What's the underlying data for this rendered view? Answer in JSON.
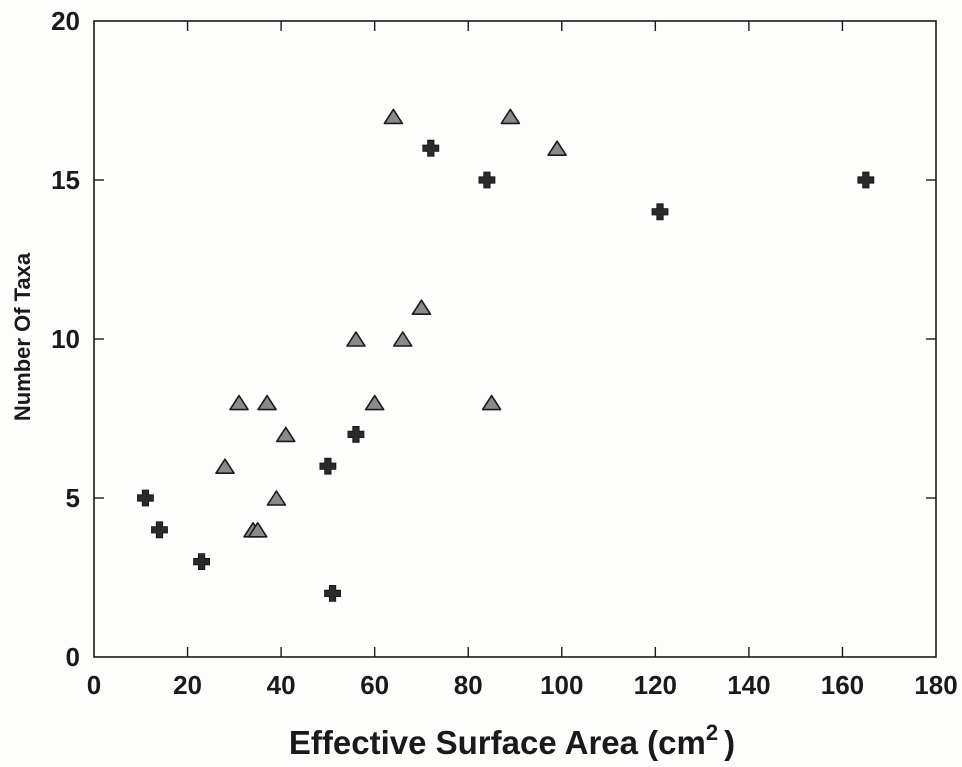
{
  "chart_data": {
    "type": "scatter",
    "title": "",
    "xlabel": "Effective Surface Area (cm",
    "xlabel_sup": "2",
    "xlabel_close": ")",
    "ylabel": "Number Of Taxa",
    "xlim": [
      0,
      180
    ],
    "ylim": [
      0,
      20
    ],
    "xticks": [
      "0",
      "20",
      "40",
      "60",
      "80",
      "100",
      "120",
      "140",
      "160",
      "180"
    ],
    "yticks": [
      "0",
      "5",
      "10",
      "15",
      "20"
    ],
    "grid": false,
    "legend": "none",
    "series": [
      {
        "marker": "triangle",
        "color": "#8a8a8a",
        "points": [
          [
            28,
            6
          ],
          [
            31,
            8
          ],
          [
            34,
            4
          ],
          [
            35,
            4
          ],
          [
            37,
            8
          ],
          [
            39,
            5
          ],
          [
            41,
            7
          ],
          [
            56,
            10
          ],
          [
            60,
            8
          ],
          [
            64,
            17
          ],
          [
            66,
            10
          ],
          [
            70,
            11
          ],
          [
            85,
            8
          ],
          [
            89,
            17
          ],
          [
            99,
            16
          ]
        ]
      },
      {
        "marker": "cross",
        "color": "#2a2a2a",
        "points": [
          [
            11,
            5
          ],
          [
            14,
            4
          ],
          [
            23,
            3
          ],
          [
            50,
            6
          ],
          [
            51,
            2
          ],
          [
            56,
            7
          ],
          [
            72,
            16
          ],
          [
            84,
            15
          ],
          [
            121,
            14
          ],
          [
            165,
            15
          ]
        ]
      }
    ]
  }
}
